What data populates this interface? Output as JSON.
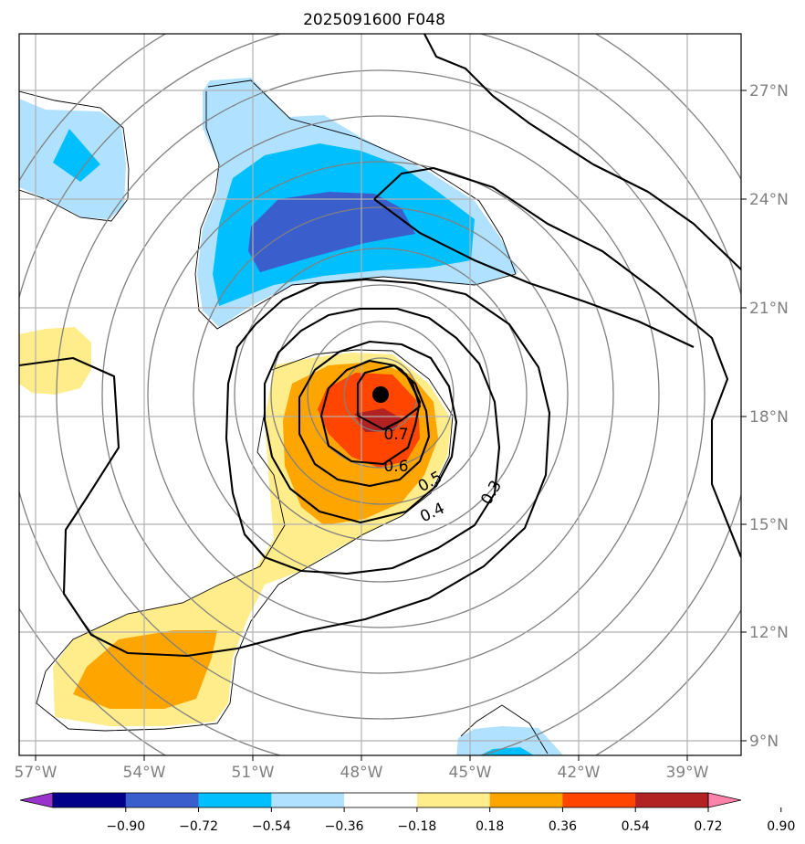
{
  "chart_data": {
    "type": "contour-map",
    "title": "2025091600 F048",
    "projection": "stereographic (storm-centred)",
    "lon_ticks": [
      "57°W",
      "54°W",
      "51°W",
      "48°W",
      "45°W",
      "42°W",
      "39°W"
    ],
    "lat_ticks": [
      "27°N",
      "24°N",
      "21°N",
      "18°N",
      "15°N",
      "12°N",
      "9°N"
    ],
    "lon_range_deg": [
      -57.5,
      -38.5
    ],
    "lat_range_deg": [
      8.7,
      28.7
    ],
    "storm_center": {
      "lon": -47.4,
      "lat": 18.6
    },
    "colorbar": {
      "ticks": [
        "−0.90",
        "−0.72",
        "−0.54",
        "−0.36",
        "−0.18",
        "0.18",
        "0.36",
        "0.54",
        "0.72",
        "0.90"
      ],
      "colors": [
        "#9a32cd",
        "#00008b",
        "#3a5fcd",
        "#00bfff",
        "#b0e2ff",
        "#ffffff",
        "#ffec8b",
        "#ffa500",
        "#ff4500",
        "#b22222",
        "#ff82ab"
      ],
      "extend": "both"
    },
    "black_contour_labels": [
      "0.3",
      "0.4",
      "0.5",
      "0.6",
      "0.7"
    ],
    "range_rings_deg": [
      1,
      2,
      3,
      4,
      5,
      6,
      7,
      8,
      9,
      10
    ]
  }
}
